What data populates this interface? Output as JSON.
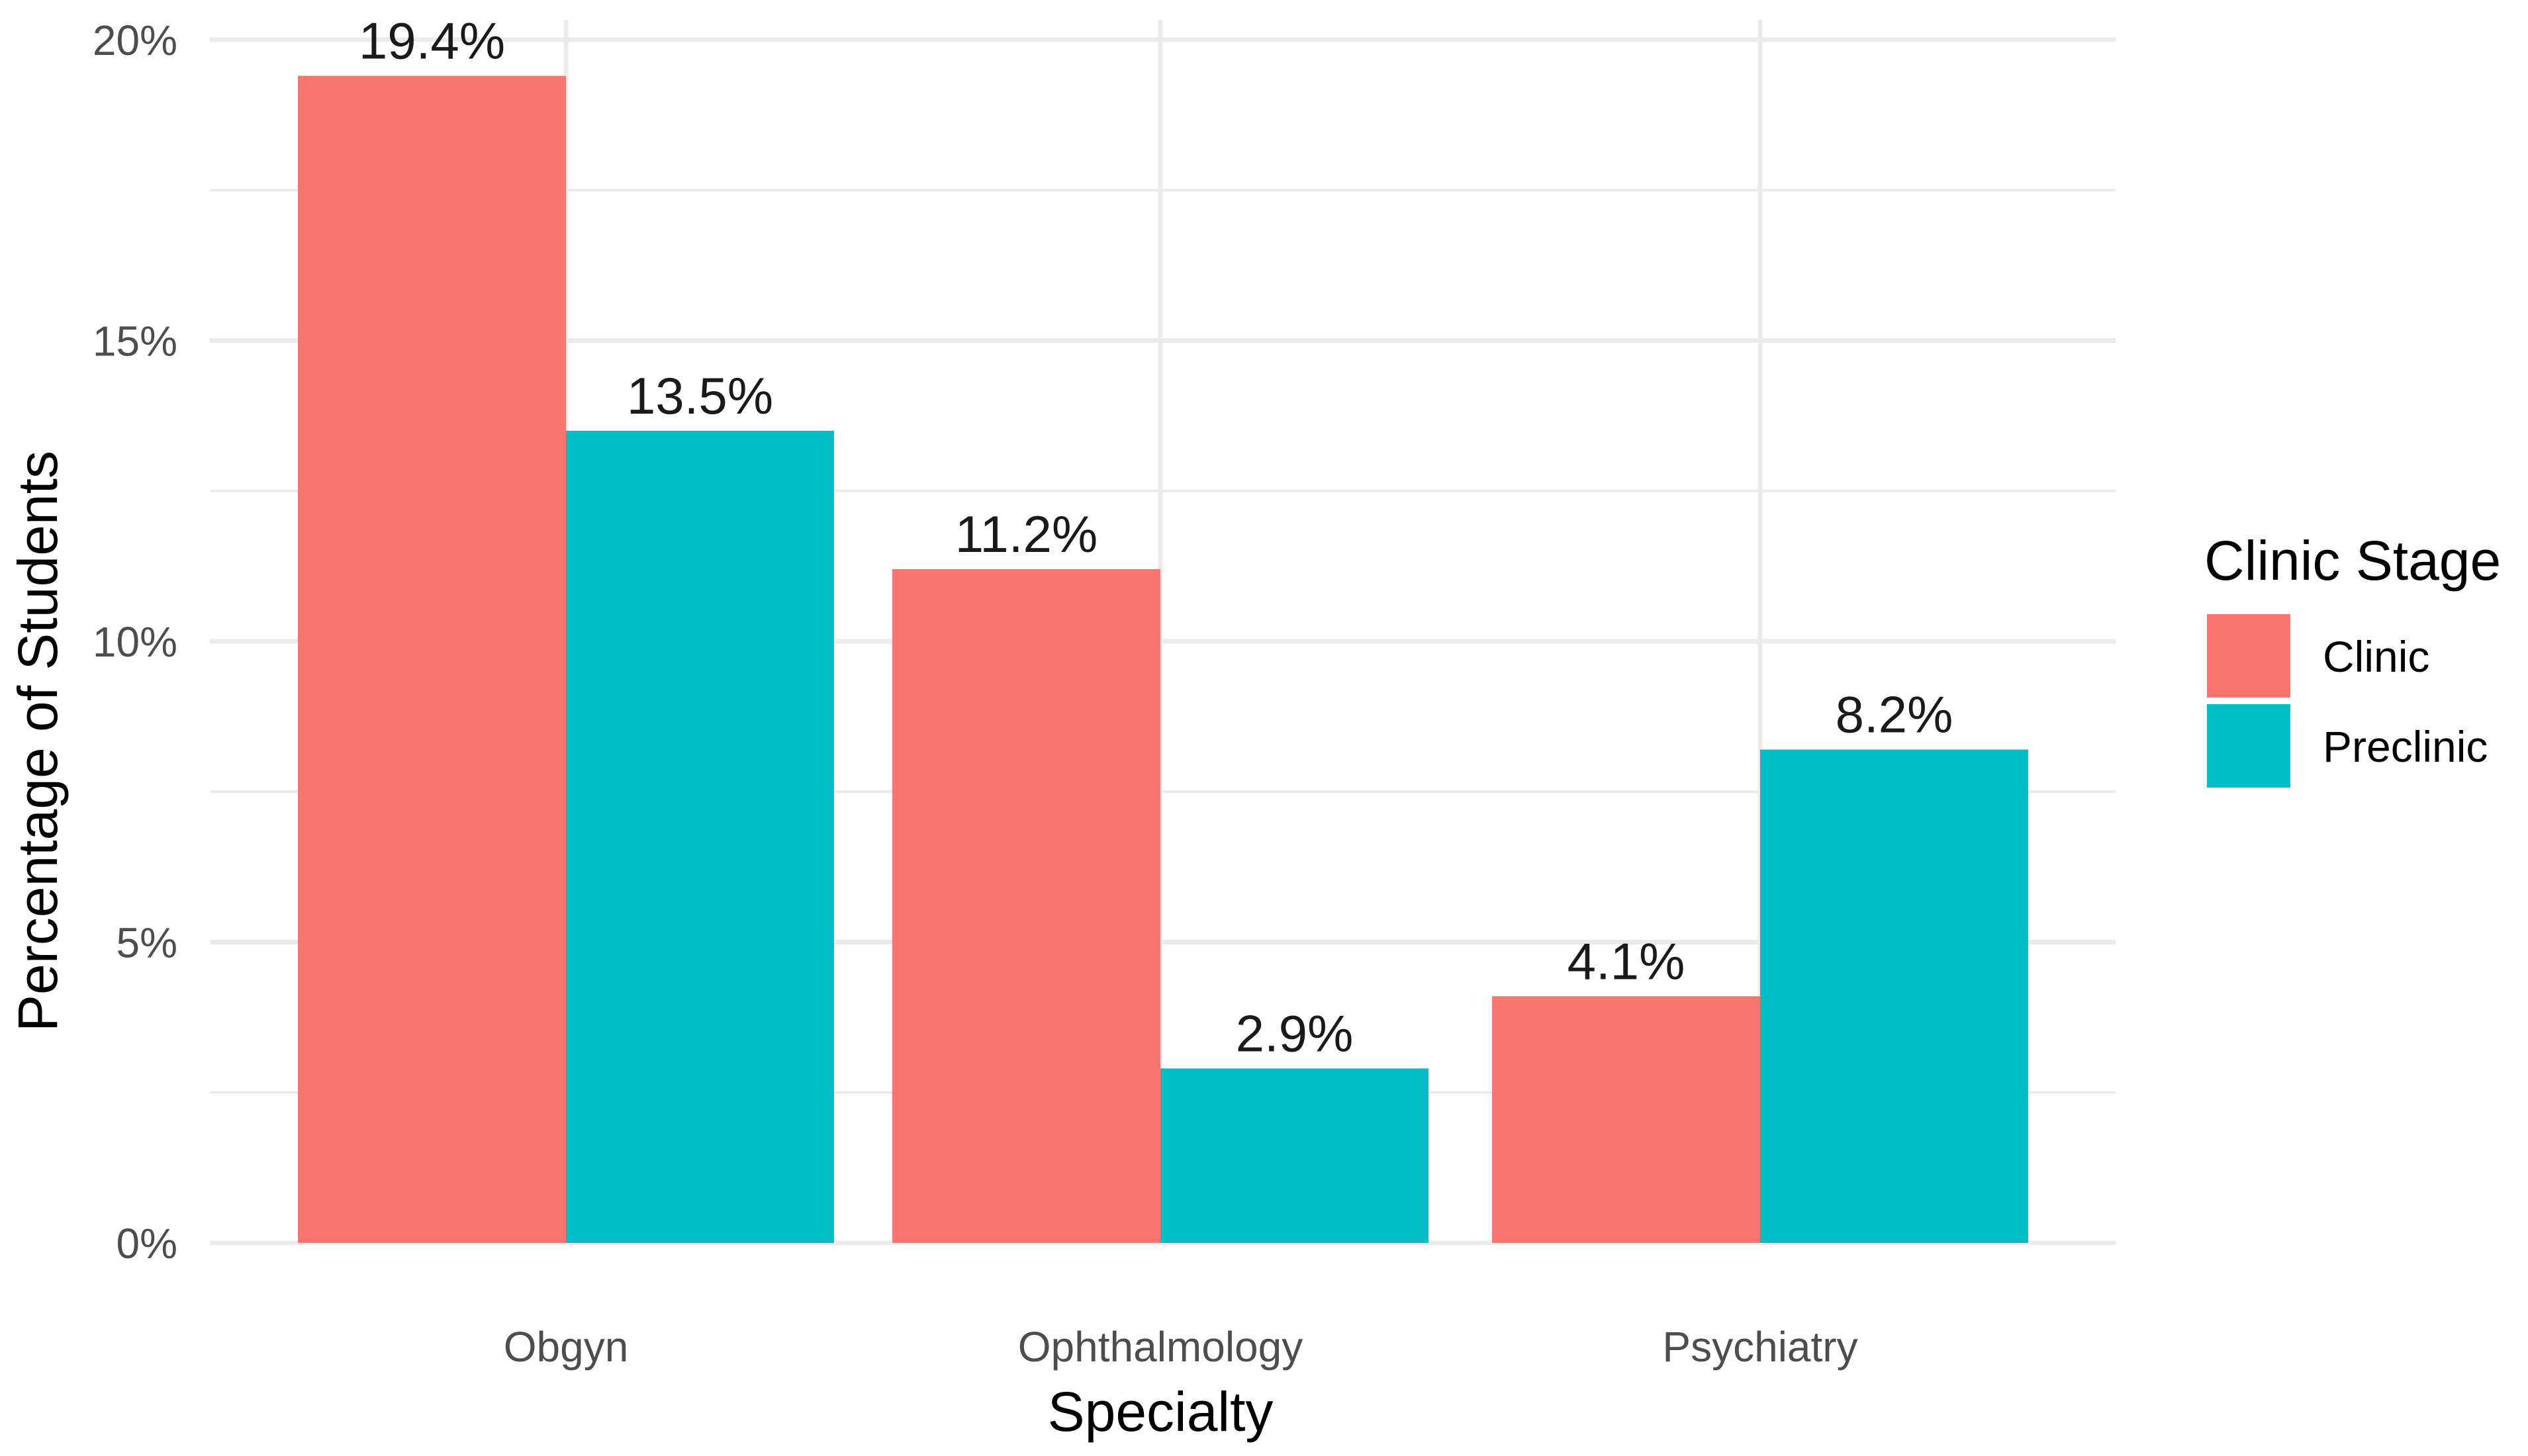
{
  "chart_data": {
    "type": "bar",
    "title": "",
    "xlabel": "Specialty",
    "ylabel": "Percentage of Students",
    "categories": [
      "Obgyn",
      "Ophthalmology",
      "Psychiatry"
    ],
    "series": [
      {
        "name": "Clinic",
        "color": "#F8766D",
        "values": [
          19.4,
          11.2,
          4.1
        ],
        "labels": [
          "19.4%",
          "11.2%",
          "4.1%"
        ]
      },
      {
        "name": "Preclinic",
        "color": "#00BFC4",
        "values": [
          13.5,
          2.9,
          8.2
        ],
        "labels": [
          "13.5%",
          "2.9%",
          "8.2%"
        ]
      }
    ],
    "ylim": [
      0,
      20
    ],
    "y_ticks": [
      0,
      5,
      10,
      15,
      20
    ],
    "y_tick_labels": [
      "0%",
      "5%",
      "10%",
      "15%",
      "20%"
    ],
    "grid": true,
    "legend": {
      "title": "Clinic Stage",
      "placement": "right"
    }
  }
}
